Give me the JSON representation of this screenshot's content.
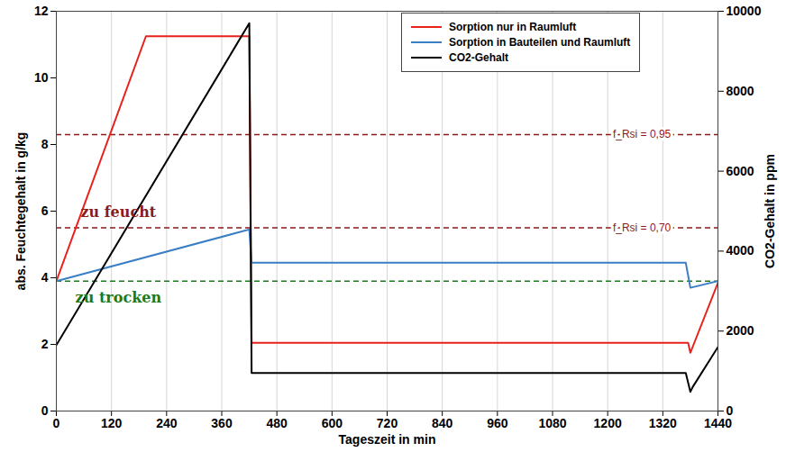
{
  "chart_data": {
    "type": "line",
    "xlabel": "Tageszeit in min",
    "ylabel": "abs. Feuchtegehalt in g/kg",
    "y2label": "CO2-Gehalt in ppm",
    "xlim": [
      0,
      1440
    ],
    "xticks": [
      0,
      120,
      240,
      360,
      480,
      600,
      720,
      840,
      960,
      1080,
      1200,
      1320,
      1440
    ],
    "ylim": [
      0,
      12
    ],
    "yticks": [
      0,
      2,
      4,
      6,
      8,
      10,
      12
    ],
    "y2lim": [
      0,
      10000
    ],
    "y2ticks": [
      0,
      2000,
      4000,
      6000,
      8000,
      10000
    ],
    "grid": true,
    "legend": "top-right",
    "series": [
      {
        "name": "Sorption nur in Raumluft",
        "color": "#e8211d",
        "x": [
          0,
          195,
          420,
          425,
          1375,
          1380,
          1440
        ],
        "values": [
          3.9,
          11.25,
          11.25,
          2.05,
          2.05,
          1.75,
          3.85
        ]
      },
      {
        "name": "Sorption in Bauteilen und Raumluft",
        "color": "#3a7fc4",
        "x": [
          0,
          420,
          425,
          1370,
          1380,
          1440
        ],
        "values": [
          3.9,
          5.45,
          4.45,
          4.45,
          3.7,
          3.9
        ]
      },
      {
        "name": "CO2-Gehalt",
        "color": "#000000",
        "axis": "y2",
        "x": [
          0,
          420,
          425,
          1370,
          1380,
          1385,
          1440
        ],
        "values": [
          1650,
          9700,
          950,
          950,
          480,
          600,
          1600
        ]
      }
    ],
    "reference_lines": [
      {
        "value": 8.3,
        "label": "f_Rsi = 0,95",
        "color": "#8b1a1a",
        "line_style": "dashed"
      },
      {
        "value": 5.5,
        "label": "f_Rsi = 0,70",
        "color": "#8b1a1a",
        "line_style": "dashed"
      },
      {
        "value": 3.9,
        "color": "#1a7a1a",
        "line_style": "dashed"
      }
    ],
    "annotations": [
      {
        "text": "zu feucht",
        "x": 135,
        "y": 5.95,
        "color": "#8b1a1a"
      },
      {
        "text": "zu trocken",
        "x": 135,
        "y": 3.4,
        "color": "#1a7a1a"
      }
    ]
  }
}
